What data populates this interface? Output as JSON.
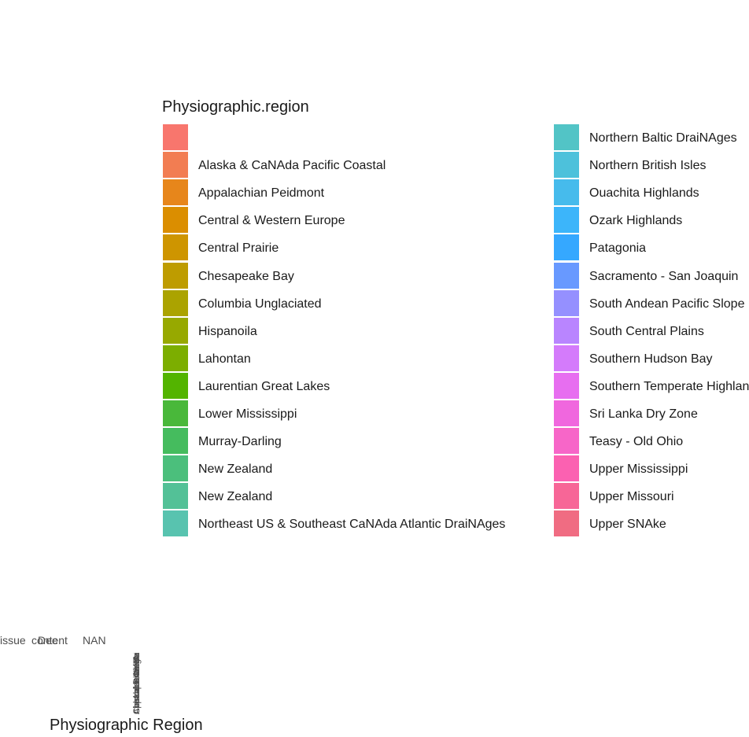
{
  "chart_data": {
    "type": "bar",
    "title": "",
    "xlabel": "Physiographic Region",
    "ylabel": "",
    "legend": {
      "title": "Physiographic.region",
      "placement": "right",
      "entries": [
        {
          "label": "",
          "color": "#F8766D"
        },
        {
          "label": "Alaska & CaNAda Pacific Coastal",
          "color": "#F27D52"
        },
        {
          "label": "Appalachian Peidmont",
          "color": "#E7861B"
        },
        {
          "label": "Central & Western Europe",
          "color": "#DB8E00"
        },
        {
          "label": "Central Prairie",
          "color": "#CE9500"
        },
        {
          "label": "Chesapeake Bay",
          "color": "#BE9C00"
        },
        {
          "label": "Columbia Unglaciated",
          "color": "#ABA300"
        },
        {
          "label": "Hispanoila",
          "color": "#97A900"
        },
        {
          "label": "Lahontan",
          "color": "#7CAE00"
        },
        {
          "label": "Laurentian Great Lakes",
          "color": "#53B400"
        },
        {
          "label": "Lower Mississippi",
          "color": "#49B83A"
        },
        {
          "label": "Murray-Darling",
          "color": "#45BC5E"
        },
        {
          "label": "New Zealand",
          "color": "#4BBF7C"
        },
        {
          "label": "New Zealand",
          "color": "#53C197"
        },
        {
          "label": "Northeast US & Southeast CaNAda Atlantic DraiNAges",
          "color": "#58C3AF"
        },
        {
          "label": "Northern Baltic DraiNAges",
          "color": "#52C4C6"
        },
        {
          "label": "Northern British Isles",
          "color": "#4DC1DB"
        },
        {
          "label": "Ouachita Highlands",
          "color": "#46BBEC"
        },
        {
          "label": "Ozark Highlands",
          "color": "#3CB5FA"
        },
        {
          "label": "Patagonia",
          "color": "#35A8FF"
        },
        {
          "label": "Sacramento - San Joaquin",
          "color": "#6899FF"
        },
        {
          "label": "South Andean Pacific Slope",
          "color": "#9590FF"
        },
        {
          "label": "South Central Plains",
          "color": "#B985FF"
        },
        {
          "label": "Southern Hudson Bay",
          "color": "#D47BFB"
        },
        {
          "label": "Southern Temperate Highlands",
          "color": "#E76EF0"
        },
        {
          "label": "Sri Lanka Dry Zone",
          "color": "#F067DE"
        },
        {
          "label": "Teasy - Old Ohio",
          "color": "#F766C8"
        },
        {
          "label": "Upper Mississippi",
          "color": "#FB61B1"
        },
        {
          "label": "Upper Missouri",
          "color": "#F76697"
        },
        {
          "label": "Upper SNAke",
          "color": "#F06C82"
        }
      ]
    },
    "axis_text_fragments": [
      "Tissue",
      "content",
      "Dec",
      "NAN"
    ],
    "grid": false
  }
}
